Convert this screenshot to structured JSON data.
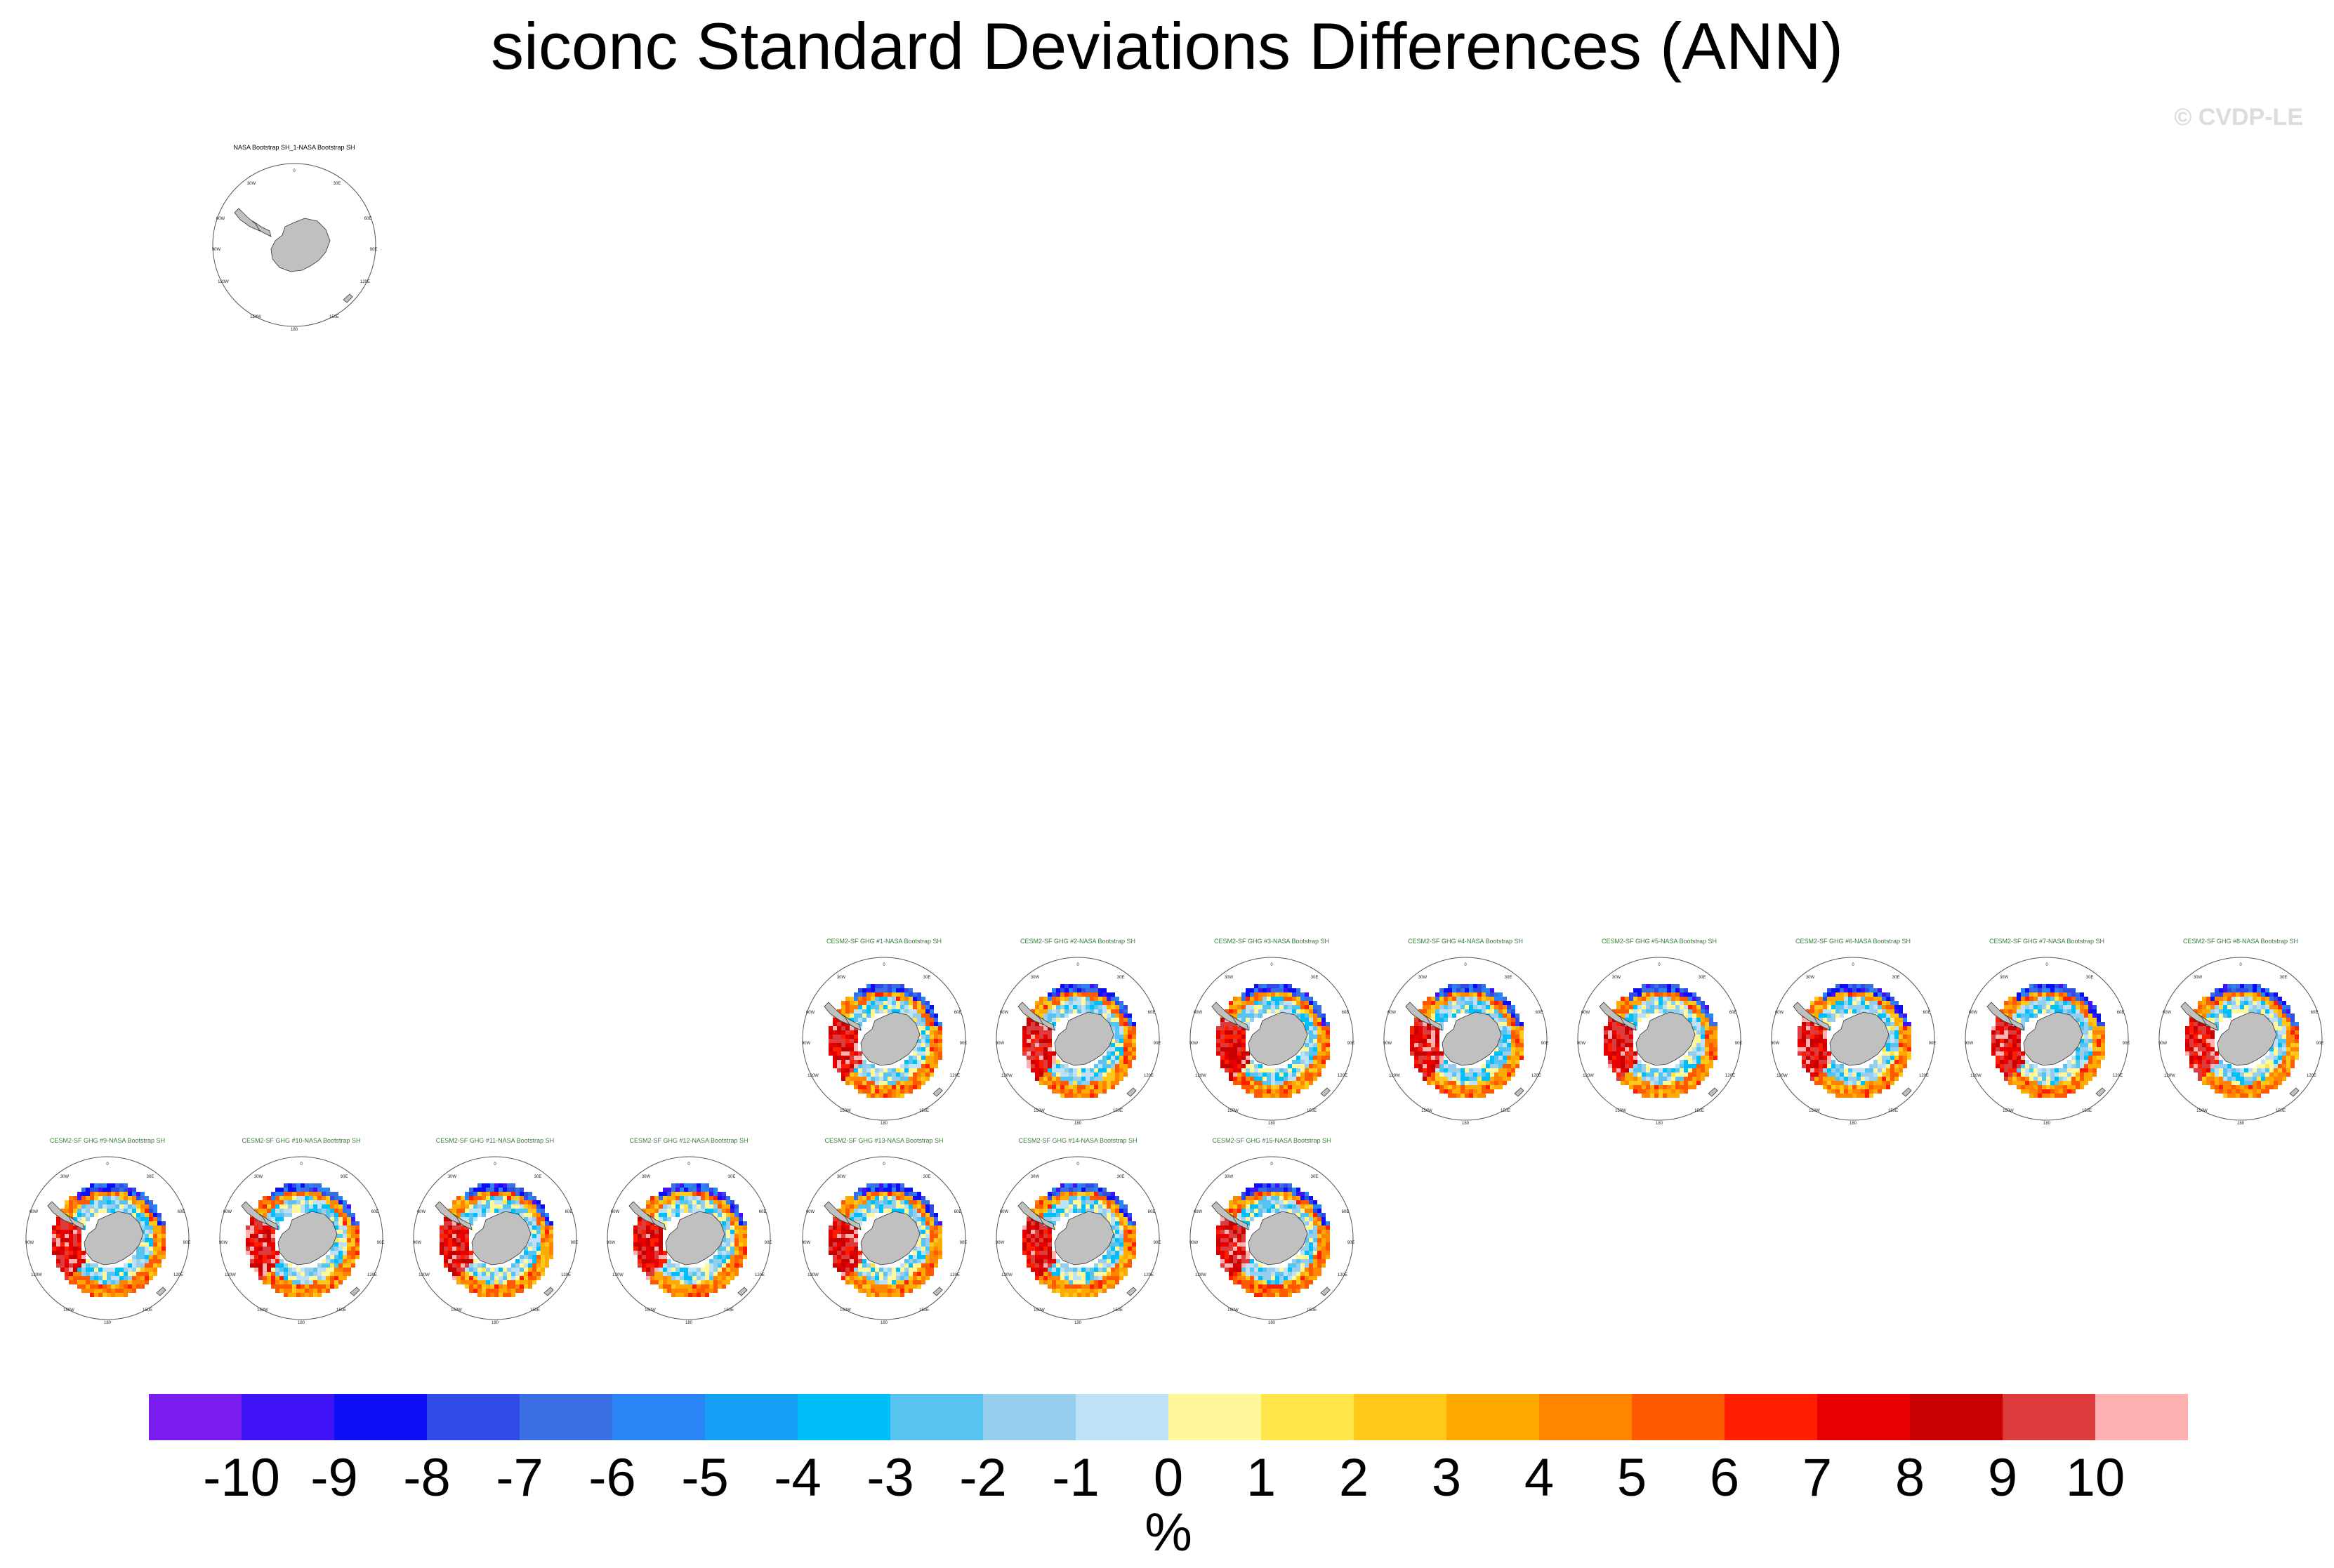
{
  "title": "siconc Standard Deviations Differences (ANN)",
  "watermark": "© CVDP-LE",
  "panel_colors": {
    "obs_title": "#000000",
    "model_title": "#3a7a3a",
    "land": "#c0c0c0"
  },
  "panel_labels": {
    "top": "0",
    "right": "90E",
    "bottom": "180",
    "left": "90W",
    "top_left": "30W",
    "top_right": "30E",
    "mid_left": "60W",
    "mid_right": "60E",
    "lower_left": "120W",
    "lower_right": "120E",
    "bottom_left": "150W",
    "bottom_right": "150E"
  },
  "panels": [
    {
      "title": "NASA Bootstrap SH_1-NASA Bootstrap SH",
      "kind": "obs"
    },
    {
      "title": "CESM2-SF GHG #1-NASA Bootstrap SH",
      "kind": "model"
    },
    {
      "title": "CESM2-SF GHG #2-NASA Bootstrap SH",
      "kind": "model"
    },
    {
      "title": "CESM2-SF GHG #3-NASA Bootstrap SH",
      "kind": "model"
    },
    {
      "title": "CESM2-SF GHG #4-NASA Bootstrap SH",
      "kind": "model"
    },
    {
      "title": "CESM2-SF GHG #5-NASA Bootstrap SH",
      "kind": "model"
    },
    {
      "title": "CESM2-SF GHG #6-NASA Bootstrap SH",
      "kind": "model"
    },
    {
      "title": "CESM2-SF GHG #7-NASA Bootstrap SH",
      "kind": "model"
    },
    {
      "title": "CESM2-SF GHG #8-NASA Bootstrap SH",
      "kind": "model"
    },
    {
      "title": "CESM2-SF GHG #9-NASA Bootstrap SH",
      "kind": "model"
    },
    {
      "title": "CESM2-SF GHG #10-NASA Bootstrap SH",
      "kind": "model"
    },
    {
      "title": "CESM2-SF GHG #11-NASA Bootstrap SH",
      "kind": "model"
    },
    {
      "title": "CESM2-SF GHG #12-NASA Bootstrap SH",
      "kind": "model"
    },
    {
      "title": "CESM2-SF GHG #13-NASA Bootstrap SH",
      "kind": "model"
    },
    {
      "title": "CESM2-SF GHG #14-NASA Bootstrap SH",
      "kind": "model"
    },
    {
      "title": "CESM2-SF GHG #15-NASA Bootstrap SH",
      "kind": "model"
    }
  ],
  "colorbar": {
    "colors": [
      "#7b1cf0",
      "#3f13f5",
      "#0c0ff5",
      "#2f4ce6",
      "#3a6fe3",
      "#2b84f5",
      "#179ff5",
      "#00bef7",
      "#56c3f0",
      "#96cfee",
      "#bde2f7",
      "#fff89a",
      "#ffe44a",
      "#ffc81a",
      "#ffaa00",
      "#ff8400",
      "#ff5a00",
      "#ff1e00",
      "#e80000",
      "#c80000",
      "#dc3c3c",
      "#ffb0b0"
    ],
    "labels": [
      "-10",
      "-9",
      "-8",
      "-7",
      "-6",
      "-5",
      "-4",
      "-3",
      "-2",
      "-1",
      "0",
      "1",
      "2",
      "3",
      "4",
      "5",
      "6",
      "7",
      "8",
      "9",
      "10"
    ],
    "units": "%"
  }
}
